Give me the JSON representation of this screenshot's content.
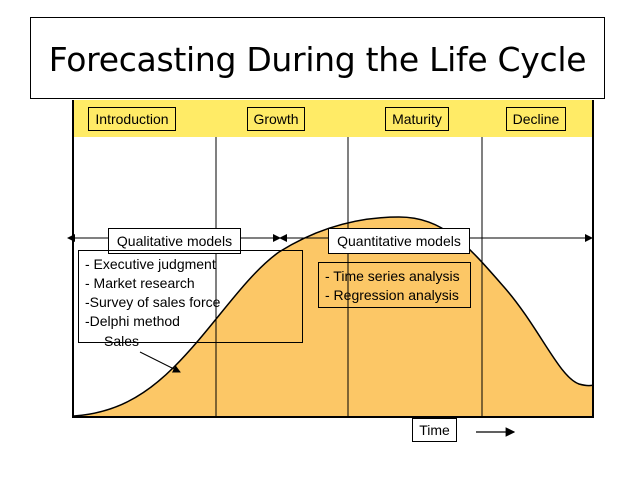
{
  "title": "Forecasting During the Life Cycle",
  "stages": [
    "Introduction",
    "Growth",
    "Maturity",
    "Decline"
  ],
  "qualitative": {
    "label": "Qualitative models",
    "methods": [
      "- Executive judgment",
      "- Market research",
      "-Survey of sales force",
      "-Delphi method"
    ]
  },
  "quantitative": {
    "label": "Quantitative models",
    "methods": [
      "- Time series analysis",
      "- Regression analysis"
    ]
  },
  "curve_label": "Sales",
  "time_label": "Time",
  "colors": {
    "stage_fill": "#ffeb66",
    "curve_fill": "#fcc766",
    "outline": "#000000"
  }
}
